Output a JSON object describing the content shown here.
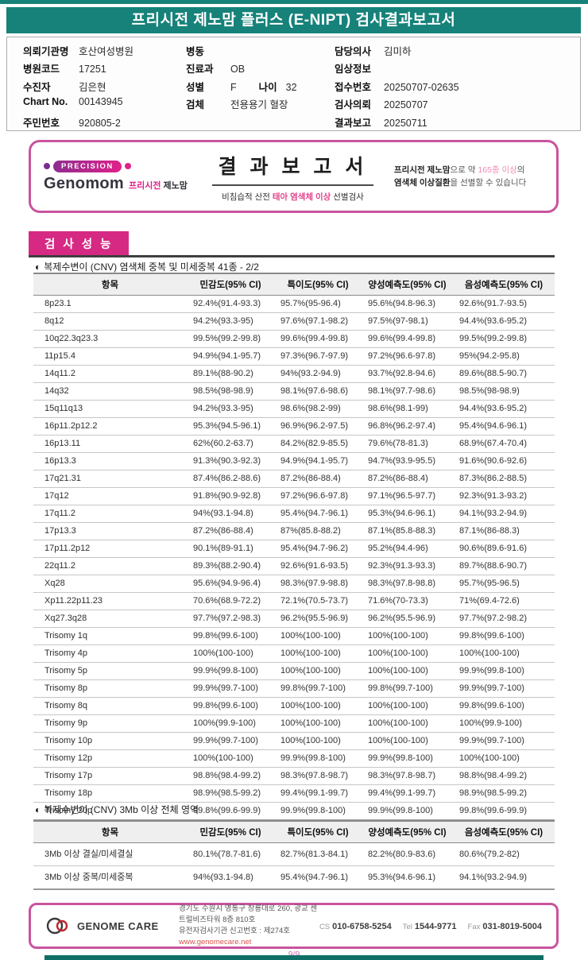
{
  "header": {
    "title": "프리시전 제노맘 플러스 (E-NIPT) 검사결과보고서"
  },
  "icons": {
    "half_circle": "◐"
  },
  "patient": {
    "col1": [
      {
        "label": "의뢰기관명",
        "value": "호산여성병원"
      },
      {
        "label": "병원코드",
        "value": "17251"
      },
      {
        "label": "수진자",
        "value": "김은현"
      },
      {
        "label": "Chart No.",
        "value": "00143945"
      },
      {
        "label": "주민번호",
        "value": "920805-2"
      }
    ],
    "col2": [
      {
        "label": "병동",
        "value": ""
      },
      {
        "label": "진료과",
        "value": "OB"
      },
      {
        "label": "성별",
        "value": "F",
        "label2": "나이",
        "value2": "32"
      },
      {
        "label": "검체",
        "value": "전용용기 혈장"
      }
    ],
    "col3": [
      {
        "label": "담당의사",
        "value": "김미하"
      },
      {
        "label": "임상정보",
        "value": ""
      },
      {
        "label": "접수번호",
        "value": "20250707-02635"
      },
      {
        "label": "검사의뢰",
        "value": "20250707"
      },
      {
        "label": "결과보고",
        "value": "20250711"
      }
    ]
  },
  "result_box": {
    "badge": "PRECISION",
    "brand_en": "Genomom",
    "brand_kr_pink": "프리시전",
    "brand_kr_dark": "제노맘",
    "title": "결 과 보 고 서",
    "subtitle_pre": "비침습적 산전 ",
    "subtitle_pink": "태아 염색체 이상",
    "subtitle_post": " 선별검사",
    "note_bold1": "프리시전 제노맘",
    "note_t1": "으로 약 ",
    "note_pink": "165종 이상",
    "note_t2": "의",
    "note_bold2": "염색체 이상질환",
    "note_t3": "을 선별할 수 있습니다"
  },
  "section": {
    "title": "검 사 성 능"
  },
  "cnv_table": {
    "caption": "복제수변이 (CNV) 염색체 중복 및 미세중복 41종 - 2/2",
    "headers": [
      "항목",
      "민감도(95% CI)",
      "특이도(95% CI)",
      "양성예측도(95% CI)",
      "음성예측도(95% CI)"
    ],
    "rows": [
      [
        "8p23.1",
        "92.4%(91.4-93.3)",
        "95.7%(95-96.4)",
        "95.6%(94.8-96.3)",
        "92.6%(91.7-93.5)"
      ],
      [
        "8q12",
        "94.2%(93.3-95)",
        "97.6%(97.1-98.2)",
        "97.5%(97-98.1)",
        "94.4%(93.6-95.2)"
      ],
      [
        "10q22.3q23.3",
        "99.5%(99.2-99.8)",
        "99.6%(99.4-99.8)",
        "99.6%(99.4-99.8)",
        "99.5%(99.2-99.8)"
      ],
      [
        "11p15.4",
        "94.9%(94.1-95.7)",
        "97.3%(96.7-97.9)",
        "97.2%(96.6-97.8)",
        "95%(94.2-95.8)"
      ],
      [
        "14q11.2",
        "89.1%(88-90.2)",
        "94%(93.2-94.9)",
        "93.7%(92.8-94.6)",
        "89.6%(88.5-90.7)"
      ],
      [
        "14q32",
        "98.5%(98-98.9)",
        "98.1%(97.6-98.6)",
        "98.1%(97.7-98.6)",
        "98.5%(98-98.9)"
      ],
      [
        "15q11q13",
        "94.2%(93.3-95)",
        "98.6%(98.2-99)",
        "98.6%(98.1-99)",
        "94.4%(93.6-95.2)"
      ],
      [
        "16p11.2p12.2",
        "95.3%(94.5-96.1)",
        "96.9%(96.2-97.5)",
        "96.8%(96.2-97.4)",
        "95.4%(94.6-96.1)"
      ],
      [
        "16p13.11",
        "62%(60.2-63.7)",
        "84.2%(82.9-85.5)",
        "79.6%(78-81.3)",
        "68.9%(67.4-70.4)"
      ],
      [
        "16p13.3",
        "91.3%(90.3-92.3)",
        "94.9%(94.1-95.7)",
        "94.7%(93.9-95.5)",
        "91.6%(90.6-92.6)"
      ],
      [
        "17q21.31",
        "87.4%(86.2-88.6)",
        "87.2%(86-88.4)",
        "87.2%(86-88.4)",
        "87.3%(86.2-88.5)"
      ],
      [
        "17q12",
        "91.8%(90.9-92.8)",
        "97.2%(96.6-97.8)",
        "97.1%(96.5-97.7)",
        "92.3%(91.3-93.2)"
      ],
      [
        "17q11.2",
        "94%(93.1-94.8)",
        "95.4%(94.7-96.1)",
        "95.3%(94.6-96.1)",
        "94.1%(93.2-94.9)"
      ],
      [
        "17p13.3",
        "87.2%(86-88.4)",
        "87%(85.8-88.2)",
        "87.1%(85.8-88.3)",
        "87.1%(86-88.3)"
      ],
      [
        "17p11.2p12",
        "90.1%(89-91.1)",
        "95.4%(94.7-96.2)",
        "95.2%(94.4-96)",
        "90.6%(89.6-91.6)"
      ],
      [
        "22q11.2",
        "89.3%(88.2-90.4)",
        "92.6%(91.6-93.5)",
        "92.3%(91.3-93.3)",
        "89.7%(88.6-90.7)"
      ],
      [
        "Xq28",
        "95.6%(94.9-96.4)",
        "98.3%(97.9-98.8)",
        "98.3%(97.8-98.8)",
        "95.7%(95-96.5)"
      ],
      [
        "Xp11.22p11.23",
        "70.6%(68.9-72.2)",
        "72.1%(70.5-73.7)",
        "71.6%(70-73.3)",
        "71%(69.4-72.6)"
      ],
      [
        "Xq27.3q28",
        "97.7%(97.2-98.3)",
        "96.2%(95.5-96.9)",
        "96.2%(95.5-96.9)",
        "97.7%(97.2-98.2)"
      ],
      [
        "Trisomy 1q",
        "99.8%(99.6-100)",
        "100%(100-100)",
        "100%(100-100)",
        "99.8%(99.6-100)"
      ],
      [
        "Trisomy 4p",
        "100%(100-100)",
        "100%(100-100)",
        "100%(100-100)",
        "100%(100-100)"
      ],
      [
        "Trisomy 5p",
        "99.9%(99.8-100)",
        "100%(100-100)",
        "100%(100-100)",
        "99.9%(99.8-100)"
      ],
      [
        "Trisomy 8p",
        "99.9%(99.7-100)",
        "99.8%(99.7-100)",
        "99.8%(99.7-100)",
        "99.9%(99.7-100)"
      ],
      [
        "Trisomy 8q",
        "99.8%(99.6-100)",
        "100%(100-100)",
        "100%(100-100)",
        "99.8%(99.6-100)"
      ],
      [
        "Trisomy 9p",
        "100%(99.9-100)",
        "100%(100-100)",
        "100%(100-100)",
        "100%(99.9-100)"
      ],
      [
        "Trisomy 10p",
        "99.9%(99.7-100)",
        "100%(100-100)",
        "100%(100-100)",
        "99.9%(99.7-100)"
      ],
      [
        "Trisomy 12p",
        "100%(100-100)",
        "99.9%(99.8-100)",
        "99.9%(99.8-100)",
        "100%(100-100)"
      ],
      [
        "Trisomy 17p",
        "98.8%(98.4-99.2)",
        "98.3%(97.8-98.7)",
        "98.3%(97.8-98.7)",
        "98.8%(98.4-99.2)"
      ],
      [
        "Trisomy 18p",
        "98.9%(98.5-99.2)",
        "99.4%(99.1-99.7)",
        "99.4%(99.1-99.7)",
        "98.9%(98.5-99.2)"
      ],
      [
        "Trisomy 20p",
        "99.8%(99.6-99.9)",
        "99.9%(99.8-100)",
        "99.9%(99.8-100)",
        "99.8%(99.6-99.9)"
      ]
    ]
  },
  "region_table": {
    "caption": "복제수변이 (CNV) 3Mb 이상 전체 영역",
    "headers": [
      "항목",
      "민감도(95% CI)",
      "특이도(95% CI)",
      "양성예측도(95% CI)",
      "음성예측도(95% CI)"
    ],
    "rows": [
      [
        "3Mb 이상 결실/미세결실",
        "80.1%(78.7-81.6)",
        "82.7%(81.3-84.1)",
        "82.2%(80.9-83.6)",
        "80.6%(79.2-82)"
      ],
      [
        "3Mb 이상 중복/미세중복",
        "94%(93.1-94.8)",
        "95.4%(94.7-96.1)",
        "95.3%(94.6-96.1)",
        "94.1%(93.2-94.9)"
      ]
    ]
  },
  "footer": {
    "logo": "GENOME CARE",
    "address1": "경기도 수원시 영통구 창룡대로 260, 광교 센트럴비즈타워 8층 810호",
    "address2": "유전자검사기관 신고번호 : 제274호",
    "website": "www.genomecare.net",
    "contacts": [
      {
        "label": "CS",
        "value": "010-6758-5254"
      },
      {
        "label": "Tel",
        "value": "1544-9771"
      },
      {
        "label": "Fax",
        "value": "031-8019-5004"
      }
    ]
  },
  "page_number": "9/9",
  "colors": {
    "teal": "#16827A",
    "section_pink": "#D62983",
    "border_pink": "#C9549E",
    "accent_pink": "#E0218A"
  }
}
